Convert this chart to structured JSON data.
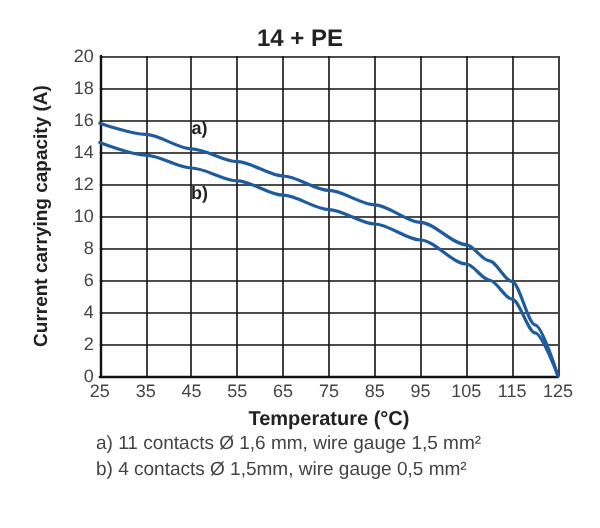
{
  "chart_data": {
    "type": "line",
    "title": "14 + PE",
    "xlabel": "Temperature (°C)",
    "ylabel": "Current carrying capacity (A)",
    "x": [
      25,
      35,
      45,
      55,
      65,
      75,
      85,
      95,
      105,
      110,
      115,
      120,
      125
    ],
    "series": [
      {
        "name": "a)",
        "color": "#1f5c9e",
        "values": [
          15.8,
          15.1,
          14.2,
          13.4,
          12.5,
          11.6,
          10.7,
          9.6,
          8.2,
          7.2,
          5.9,
          3.2,
          0
        ]
      },
      {
        "name": "b)",
        "color": "#1f5c9e",
        "values": [
          14.6,
          13.8,
          13.0,
          12.2,
          11.3,
          10.4,
          9.5,
          8.5,
          7.0,
          6.0,
          4.8,
          2.7,
          0
        ]
      }
    ],
    "xlim": [
      25,
      125
    ],
    "xticks": [
      25,
      35,
      45,
      55,
      65,
      75,
      85,
      95,
      105,
      115,
      125
    ],
    "ylim": [
      0,
      20
    ],
    "yticks": [
      0,
      2,
      4,
      6,
      8,
      10,
      12,
      14,
      16,
      18,
      20
    ],
    "grid": true,
    "legend": false,
    "marker": "none",
    "line_style": "solid",
    "annotations": [
      "a) 11 contacts Ø 1,6 mm, wire gauge 1,5 mm²",
      "b) 4 contacts Ø 1,5mm, wire gauge 0,5 mm²"
    ]
  }
}
